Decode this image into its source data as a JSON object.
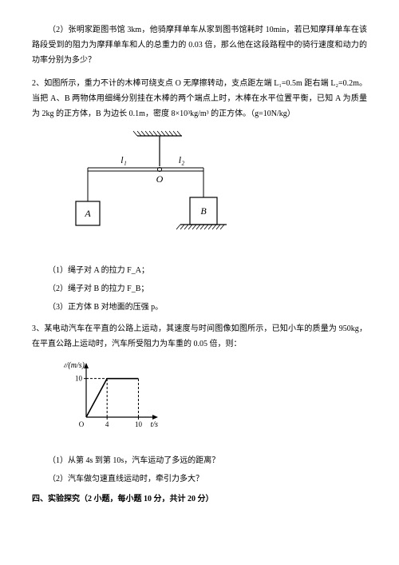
{
  "q1_sub2": "（2）张明家距图书馆 3km，他骑摩拜单车从家到图书馆耗时 10min，若已知摩拜单车在该路段受到的阻力为摩拜单车和人的总重力的 0.03 倍，那么他在这段路程中的骑行速度和动力的功率分别为多少？",
  "q2_stem": "2、如图所示，重力不计的木棒可绕支点 O 无摩擦转动，支点距左端 L₁=0.5m 距右端 L₂=0.2m。当把 A、B 两物体用细绳分别挂在木棒的两个端点上时，木棒在水平位置平衡，已知 A 为质量为 2kg 的正方体，B 为边长 0.1m，密度 8×10³kg/m³ 的正方体。（g=10N/kg）",
  "q2_diagram": {
    "L1_label": "l₁",
    "L2_label": "l₂",
    "O_label": "O",
    "A_label": "A",
    "B_label": "B",
    "bar_color": "#000000",
    "hatch_color": "#000000",
    "background": "#ffffff",
    "L1_length": 90,
    "L2_length": 55,
    "bar_y": 50,
    "A_size": 30,
    "B_size": 34,
    "total_width": 220,
    "total_height": 150
  },
  "q2_sub1": "（1）绳子对 A 的拉力 F_A；",
  "q2_sub2": "（2）绳子对 B 的拉力 F_B；",
  "q2_sub3": "（3）正方体 B 对地面的压强 p。",
  "q3_stem": "3、某电动汽车在平直的公路上运动，其速度与时间图像如图所示，已知小车的质量为 950kg，在平直公路上运动时，汽车所受阻力为车重的 0.05 倍，则：",
  "q3_graph": {
    "type": "line",
    "xlabel": "t/s",
    "ylabel": "v/(m/s)",
    "xlim": [
      0,
      11
    ],
    "ylim": [
      0,
      12
    ],
    "xticks": [
      0,
      4,
      10
    ],
    "yticks": [
      0,
      10
    ],
    "xtick_labels": [
      "O",
      "4",
      "10"
    ],
    "ytick_labels": [
      "",
      "10"
    ],
    "line_color": "#000000",
    "axis_color": "#000000",
    "dash_color": "#000000",
    "background": "#ffffff",
    "segments": [
      {
        "from": [
          0,
          0
        ],
        "to": [
          4,
          10
        ]
      },
      {
        "from": [
          4,
          10
        ],
        "to": [
          10,
          10
        ]
      }
    ],
    "dashed": [
      {
        "from": [
          4,
          0
        ],
        "to": [
          4,
          10
        ]
      },
      {
        "from": [
          0,
          10
        ],
        "to": [
          4,
          10
        ]
      },
      {
        "from": [
          10,
          0
        ],
        "to": [
          10,
          10
        ]
      }
    ],
    "width": 120,
    "height": 90,
    "label_fontsize": 10
  },
  "q3_sub1": "（1）从第 4s 到第 10s，汽车运动了多远的距离？",
  "q3_sub2": "（2）汽车做匀速直线运动时，牵引力多大？",
  "section4": "四、实验探究（2 小题，每小题 10 分，共计 20 分）"
}
